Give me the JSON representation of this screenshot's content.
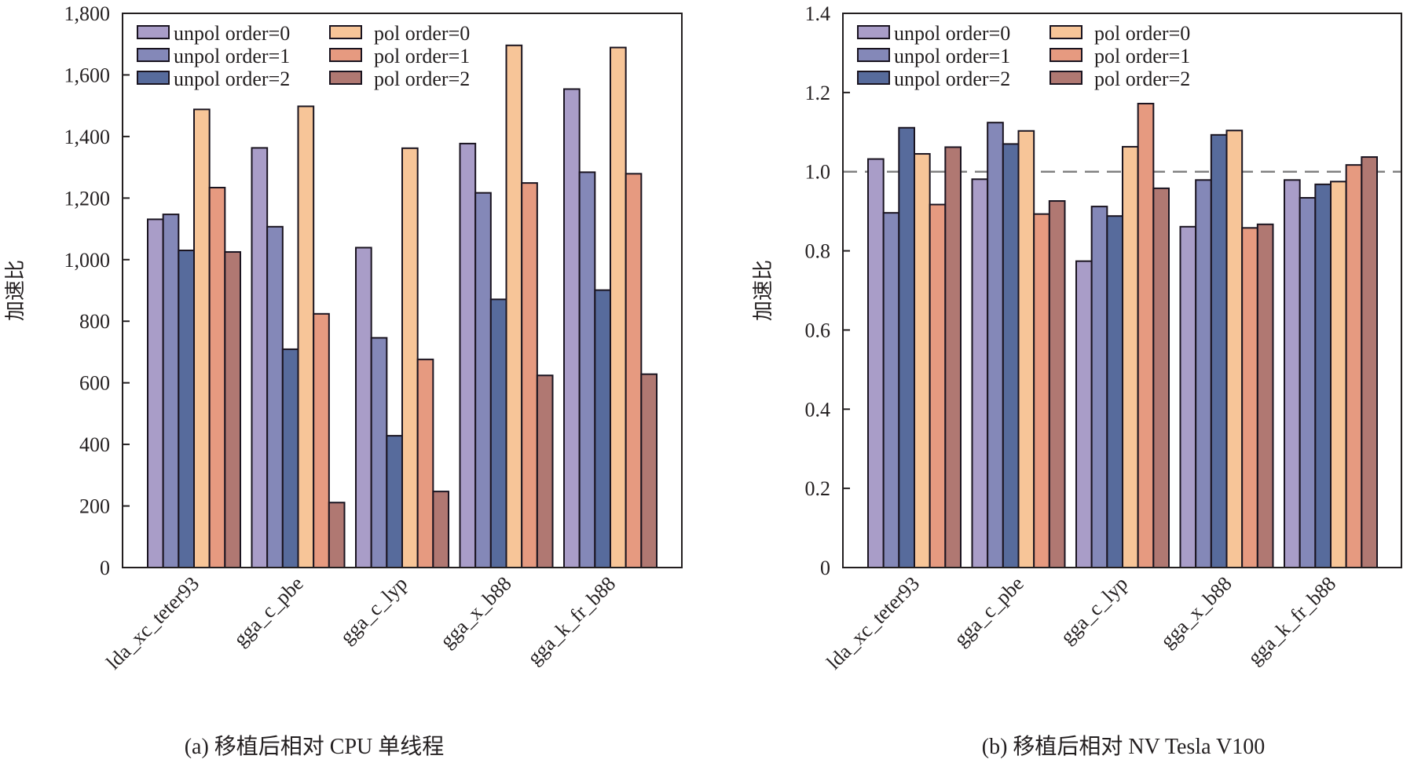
{
  "colors": {
    "unpol order=0": "#a99dc8",
    "unpol order=1": "#8488b8",
    "unpol order=2": "#576b9c",
    "pol order=0": "#f7c598",
    "pol order=1": "#e69a80",
    "pol order=2": "#b07872",
    "frame": "#231f20",
    "reference_line": "#808080"
  },
  "chart_data": [
    {
      "type": "bar",
      "title": "",
      "caption": "(a) 移植后相对 CPU 单线程",
      "xlabel": "",
      "ylabel": "加速比",
      "ylim": [
        0,
        1800
      ],
      "yticks": [
        0,
        200,
        400,
        600,
        800,
        1000,
        1200,
        1400,
        1600,
        1800
      ],
      "ytick_labels": [
        "0",
        "200",
        "400",
        "600",
        "800",
        "1,000",
        "1,200",
        "1,400",
        "1,600",
        "1,800"
      ],
      "grid": false,
      "legend_position": "top-left",
      "categories": [
        "lda_xc_teter93",
        "gga_c_pbe",
        "gga_c_lyp",
        "gga_x_b88",
        "gga_k_fr_b88"
      ],
      "series": [
        {
          "name": "unpol order=0",
          "values": [
            1131,
            1363,
            1039,
            1377,
            1554
          ]
        },
        {
          "name": "unpol order=1",
          "values": [
            1147,
            1107,
            746,
            1217,
            1284
          ]
        },
        {
          "name": "unpol order=2",
          "values": [
            1030,
            709,
            428,
            871,
            901
          ]
        },
        {
          "name": "pol order=0",
          "values": [
            1488,
            1498,
            1362,
            1696,
            1689
          ]
        },
        {
          "name": "pol order=1",
          "values": [
            1234,
            824,
            676,
            1249,
            1279
          ]
        },
        {
          "name": "pol order=2",
          "values": [
            1025,
            211,
            247,
            624,
            628
          ]
        }
      ]
    },
    {
      "type": "bar",
      "title": "",
      "caption": "(b) 移植后相对 NV Tesla V100",
      "xlabel": "",
      "ylabel": "加速比",
      "ylim": [
        0,
        1.4
      ],
      "yticks": [
        0,
        0.2,
        0.4,
        0.6,
        0.8,
        1.0,
        1.2,
        1.4
      ],
      "ytick_labels": [
        "0",
        "0.2",
        "0.4",
        "0.6",
        "0.8",
        "1.0",
        "1.2",
        "1.4"
      ],
      "grid": false,
      "reference_line": 1.0,
      "legend_position": "top-left",
      "categories": [
        "lda_xc_teter93",
        "gga_c_pbe",
        "gga_c_lyp",
        "gga_x_b88",
        "gga_k_fr_b88"
      ],
      "series": [
        {
          "name": "unpol order=0",
          "values": [
            1.032,
            0.981,
            0.774,
            0.861,
            0.979
          ]
        },
        {
          "name": "unpol order=1",
          "values": [
            0.896,
            1.124,
            0.912,
            0.979,
            0.934
          ]
        },
        {
          "name": "unpol order=2",
          "values": [
            1.111,
            1.07,
            0.888,
            1.093,
            0.968
          ]
        },
        {
          "name": "pol order=0",
          "values": [
            1.045,
            1.103,
            1.063,
            1.104,
            0.975
          ]
        },
        {
          "name": "pol order=1",
          "values": [
            0.917,
            0.893,
            1.172,
            0.858,
            1.017
          ]
        },
        {
          "name": "pol order=2",
          "values": [
            1.062,
            0.926,
            0.958,
            0.867,
            1.037
          ]
        }
      ]
    }
  ]
}
